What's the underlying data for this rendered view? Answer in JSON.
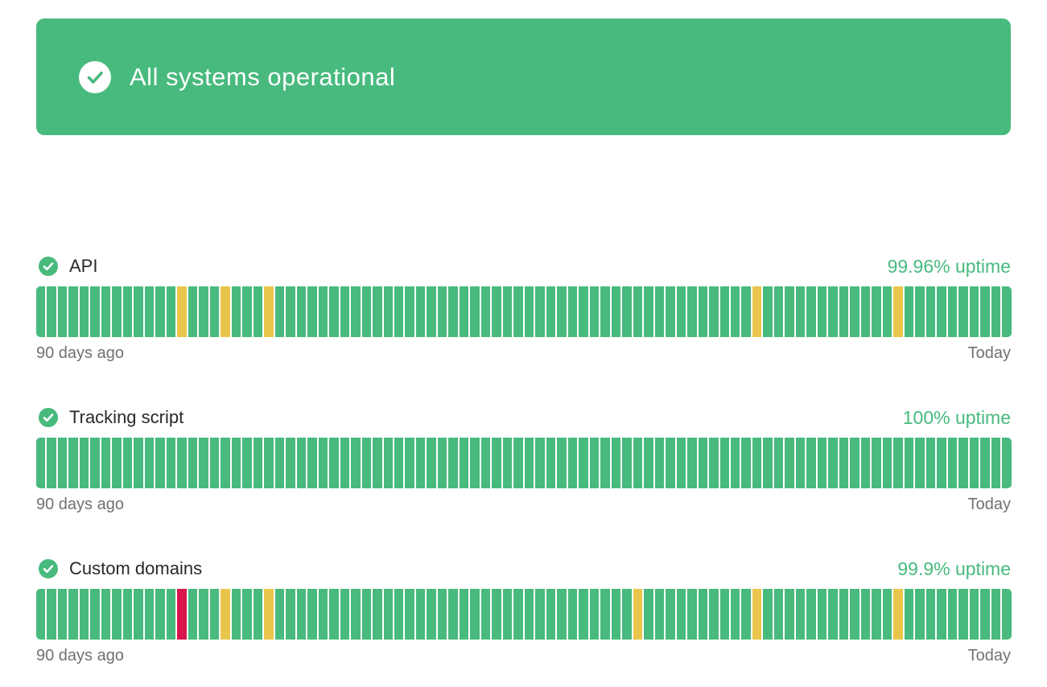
{
  "colors": {
    "green": "#48BA7E",
    "yellow": "#E9C64B",
    "red": "#D7164C",
    "text_dark": "#29292c",
    "text_gray": "#707076",
    "banner_text": "#ffffff"
  },
  "banner": {
    "label": "All systems operational",
    "icon": "check-circle-icon"
  },
  "timeline": {
    "days": 90,
    "start_label": "90 days ago",
    "end_label": "Today"
  },
  "services": [
    {
      "name": "API",
      "status": "operational",
      "status_icon": "check-circle-icon",
      "uptime_label": "99.96% uptime",
      "bars": {
        "degraded_days": [
          13,
          17,
          21,
          66,
          79
        ],
        "down_days": []
      }
    },
    {
      "name": "Tracking script",
      "status": "operational",
      "status_icon": "check-circle-icon",
      "uptime_label": "100% uptime",
      "bars": {
        "degraded_days": [],
        "down_days": []
      }
    },
    {
      "name": "Custom domains",
      "status": "operational",
      "status_icon": "check-circle-icon",
      "uptime_label": "99.9% uptime",
      "bars": {
        "degraded_days": [
          17,
          21,
          55,
          66,
          79
        ],
        "down_days": [
          13
        ]
      }
    }
  ]
}
